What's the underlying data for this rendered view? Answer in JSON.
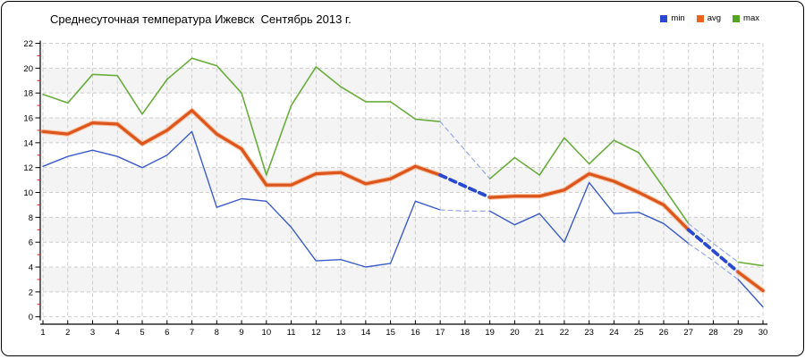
{
  "title": "Среднесуточная температура Ижевск  Сентябрь 2013 г.",
  "legend": [
    {
      "label": "min",
      "color": "#2b49cf"
    },
    {
      "label": "avg",
      "color": "#e8641f"
    },
    {
      "label": "max",
      "color": "#55a428"
    }
  ],
  "chart_data": {
    "type": "line",
    "title": "Среднесуточная температура Ижевск  Сентябрь 2013 г.",
    "xlabel": "",
    "ylabel": "",
    "x": [
      1,
      2,
      3,
      4,
      5,
      6,
      7,
      8,
      9,
      10,
      11,
      12,
      13,
      14,
      15,
      16,
      17,
      18,
      19,
      20,
      21,
      22,
      23,
      24,
      25,
      26,
      27,
      28,
      29,
      30
    ],
    "x_tick_labels": [
      "1",
      "2",
      "3",
      "4",
      "5",
      "6",
      "7",
      "8",
      "9",
      "10",
      "11",
      "12",
      "13",
      "14",
      "15",
      "16",
      "17",
      "18",
      "19",
      "20",
      "21",
      "22",
      "23",
      "24",
      "25",
      "26",
      "27",
      "28",
      "29",
      "30"
    ],
    "ylim": [
      0,
      22
    ],
    "y_tick_labels": [
      "0",
      "2",
      "4",
      "6",
      "8",
      "10",
      "12",
      "14",
      "16",
      "18",
      "20",
      "22"
    ],
    "y_tick_step": 2,
    "grid": true,
    "legend_position": "top-right",
    "band_fill": "#f4f4f4",
    "grid_color": "#cccccc",
    "axis_color": "#000000",
    "minor_tick_color": "#cc2222",
    "series": [
      {
        "name": "min",
        "color": "#3b5cc9",
        "width": 1.4,
        "values": [
          12.1,
          12.9,
          13.4,
          12.9,
          12.0,
          13.0,
          14.9,
          8.8,
          9.5,
          9.3,
          7.2,
          4.5,
          4.6,
          4.0,
          4.3,
          9.3,
          8.6,
          8.5,
          8.5,
          7.4,
          8.3,
          6.0,
          10.8,
          8.3,
          8.4,
          7.5,
          5.9,
          4.5,
          3.0,
          0.8
        ]
      },
      {
        "name": "avg",
        "color": "#dc551c",
        "halo": "#f5ae80",
        "width": 3.2,
        "values": [
          14.9,
          14.7,
          15.6,
          15.5,
          13.9,
          15.0,
          16.6,
          14.7,
          13.5,
          10.6,
          10.6,
          11.5,
          11.6,
          10.7,
          11.1,
          12.1,
          11.4,
          10.5,
          9.6,
          9.7,
          9.7,
          10.2,
          11.5,
          10.9,
          10.0,
          9.0,
          7.0,
          5.3,
          3.6,
          2.1
        ]
      },
      {
        "name": "max",
        "color": "#69ad3c",
        "width": 1.6,
        "values": [
          17.9,
          17.2,
          19.5,
          19.4,
          16.3,
          19.1,
          20.8,
          20.2,
          18.0,
          11.4,
          17.0,
          20.1,
          18.5,
          17.3,
          17.3,
          15.9,
          15.7,
          13.4,
          11.1,
          12.8,
          11.4,
          14.4,
          12.3,
          14.2,
          13.2,
          10.4,
          7.5,
          5.9,
          4.4,
          4.1
        ]
      }
    ],
    "forecast_ranges": [
      [
        17,
        19
      ],
      [
        27,
        29
      ]
    ],
    "forecast_style": {
      "avg_color": "#2b49cf",
      "avg_width": 3.8,
      "thin_color": "#93a7e8",
      "thin_width": 1.2
    }
  }
}
